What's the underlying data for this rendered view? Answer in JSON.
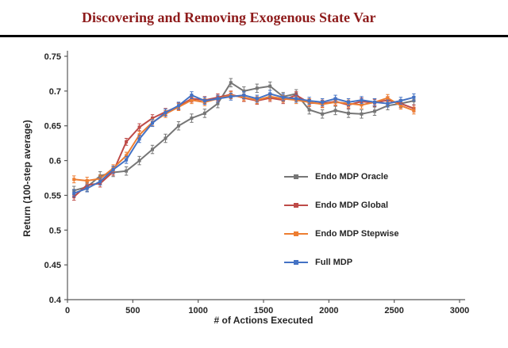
{
  "paper": {
    "running_title": "Discovering and Removing Exogenous State Var"
  },
  "chart_data": {
    "type": "line",
    "title": "",
    "xlabel": "# of Actions Executed",
    "ylabel": "Return (100-step average)",
    "xlim": [
      0,
      3000
    ],
    "ylim": [
      0.4,
      0.75
    ],
    "grid": false,
    "legend_position": "middle-right",
    "xtick_values": [
      0,
      500,
      1000,
      1500,
      2000,
      2500,
      3000
    ],
    "xtick_labels": [
      "0",
      "500",
      "1000",
      "1500",
      "2000",
      "2500",
      "3000"
    ],
    "ytick_values": [
      0.4,
      0.45,
      0.5,
      0.55,
      0.6,
      0.65,
      0.7,
      0.75
    ],
    "ytick_labels": [
      "0.4",
      "0.45",
      "0.5",
      "0.55",
      "0.6",
      "0.65",
      "0.7",
      "0.75"
    ],
    "x": [
      50,
      150,
      250,
      350,
      450,
      550,
      650,
      750,
      850,
      950,
      1050,
      1150,
      1250,
      1350,
      1450,
      1550,
      1650,
      1750,
      1850,
      1950,
      2050,
      2150,
      2250,
      2350,
      2450,
      2550,
      2650
    ],
    "series": [
      {
        "name": "Endo MDP Oracle",
        "color": "#767676",
        "err": 0.006,
        "values": [
          0.557,
          0.562,
          0.578,
          0.583,
          0.585,
          0.6,
          0.616,
          0.632,
          0.65,
          0.661,
          0.668,
          0.682,
          0.712,
          0.7,
          0.704,
          0.707,
          0.692,
          0.696,
          0.673,
          0.667,
          0.672,
          0.668,
          0.667,
          0.671,
          0.679,
          0.682,
          0.686
        ]
      },
      {
        "name": "Endo MDP Global",
        "color": "#be4b48",
        "err": 0.005,
        "values": [
          0.548,
          0.565,
          0.567,
          0.584,
          0.627,
          0.648,
          0.661,
          0.67,
          0.678,
          0.689,
          0.687,
          0.691,
          0.695,
          0.69,
          0.686,
          0.69,
          0.687,
          0.694,
          0.683,
          0.682,
          0.685,
          0.68,
          0.685,
          0.683,
          0.687,
          0.682,
          0.675
        ]
      },
      {
        "name": "Endo MDP Stepwise",
        "color": "#ed7d31",
        "err": 0.005,
        "values": [
          0.573,
          0.571,
          0.574,
          0.589,
          0.607,
          0.637,
          0.655,
          0.667,
          0.677,
          0.687,
          0.684,
          0.689,
          0.694,
          0.691,
          0.687,
          0.692,
          0.689,
          0.687,
          0.684,
          0.681,
          0.684,
          0.682,
          0.68,
          0.684,
          0.69,
          0.679,
          0.672
        ]
      },
      {
        "name": "Full MDP",
        "color": "#4472c4",
        "err": 0.005,
        "values": [
          0.553,
          0.56,
          0.57,
          0.587,
          0.601,
          0.631,
          0.654,
          0.669,
          0.679,
          0.694,
          0.686,
          0.689,
          0.692,
          0.694,
          0.689,
          0.696,
          0.691,
          0.689,
          0.686,
          0.684,
          0.689,
          0.684,
          0.687,
          0.684,
          0.682,
          0.686,
          0.691
        ]
      }
    ]
  }
}
